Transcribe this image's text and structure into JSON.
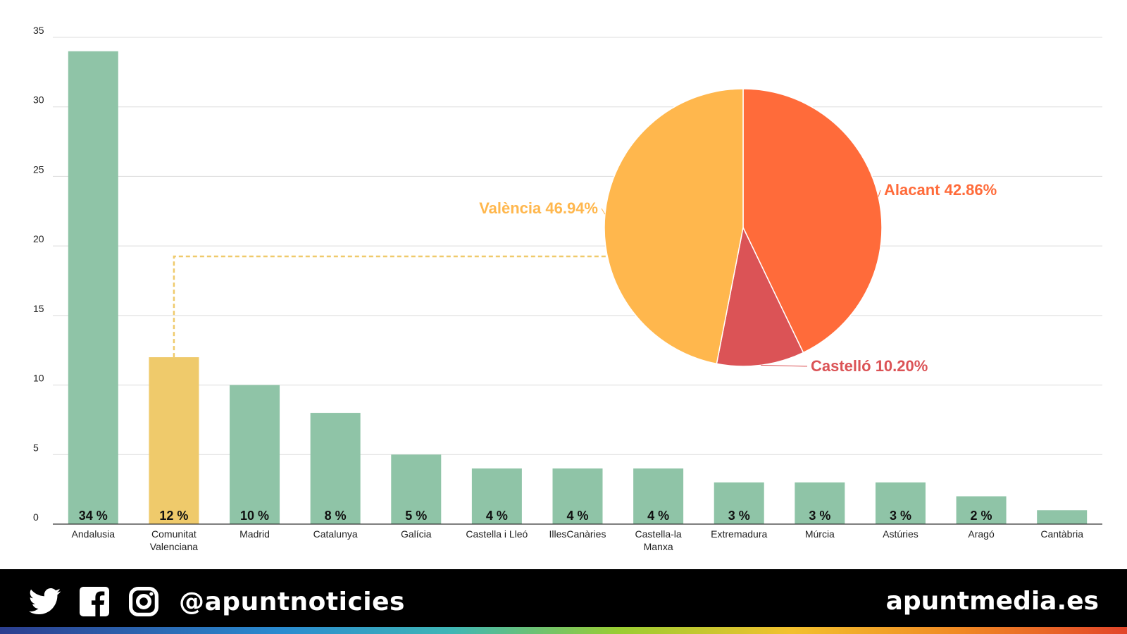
{
  "chart_data": [
    {
      "type": "bar",
      "title": "",
      "xlabel": "",
      "ylabel": "",
      "ylim": [
        0,
        35
      ],
      "yticks": [
        0,
        5,
        10,
        15,
        20,
        25,
        30,
        35
      ],
      "grid": true,
      "categories": [
        [
          "Andalusia"
        ],
        [
          "Comunitat",
          "Valenciana"
        ],
        [
          "Madrid"
        ],
        [
          "Catalunya"
        ],
        [
          "Galícia"
        ],
        [
          "Castella i Lleó"
        ],
        [
          "IllesCanàries"
        ],
        [
          "Castella-la",
          "Manxa"
        ],
        [
          "Extremadura"
        ],
        [
          "Múrcia"
        ],
        [
          "Astúries"
        ],
        [
          "Aragó"
        ],
        [
          "Cantàbria"
        ]
      ],
      "values": [
        34,
        12,
        10,
        8,
        5,
        4,
        4,
        4,
        3,
        3,
        3,
        2,
        1
      ],
      "value_labels": [
        "34 %",
        "12 %",
        "10 %",
        "8 %",
        "5 %",
        "4 %",
        "4 %",
        "4 %",
        "3 %",
        "3 %",
        "3 %",
        "2 %",
        ""
      ],
      "highlight_index": 1,
      "colors": {
        "default": "#8fc4a7",
        "highlight": "#efca6b",
        "connector": "#efca6b"
      }
    },
    {
      "type": "pie",
      "title": "",
      "slices": [
        {
          "name": "Alacant",
          "value": 42.86,
          "label": "Alacant 42.86%",
          "color": "#ff6b3a"
        },
        {
          "name": "Castelló",
          "value": 10.2,
          "label": "Castelló 10.20%",
          "color": "#db5356"
        },
        {
          "name": "València",
          "value": 46.94,
          "label": "València 46.94%",
          "color": "#ffb74d"
        }
      ]
    }
  ],
  "footer": {
    "handle": "@apuntnoticies",
    "site": "apuntmedia.es",
    "icons": [
      "twitter-icon",
      "facebook-icon",
      "instagram-icon"
    ]
  }
}
